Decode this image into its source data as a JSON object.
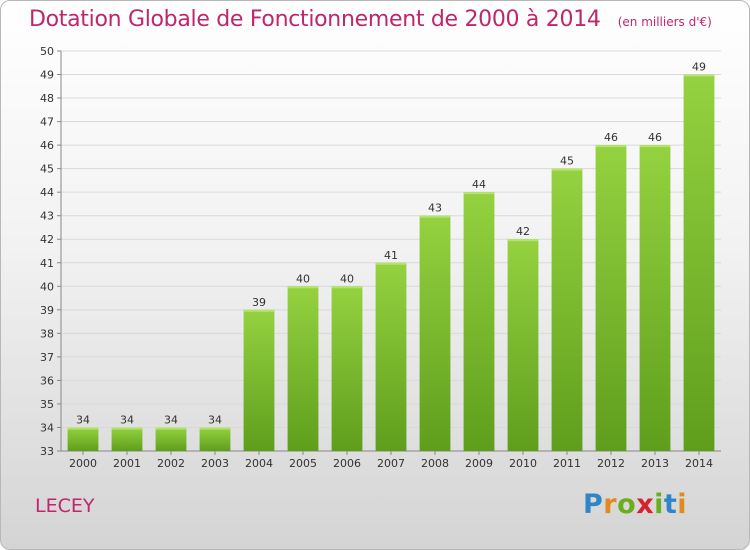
{
  "chart_data": {
    "type": "bar",
    "title": "Dotation Globale de Fonctionnement de 2000 à 2014",
    "subtitle": "(en milliers d'€)",
    "categories": [
      "2000",
      "2001",
      "2002",
      "2003",
      "2004",
      "2005",
      "2006",
      "2007",
      "2008",
      "2009",
      "2010",
      "2011",
      "2012",
      "2013",
      "2014"
    ],
    "values": [
      34,
      34,
      34,
      34,
      39,
      40,
      40,
      41,
      43,
      44,
      42,
      45,
      46,
      46,
      49
    ],
    "ylim": [
      33,
      50
    ],
    "yticks": [
      33,
      34,
      35,
      36,
      37,
      38,
      39,
      40,
      41,
      42,
      43,
      44,
      45,
      46,
      47,
      48,
      49,
      50
    ],
    "grid": true,
    "bar_color": "#7cbf30",
    "label_text": "LECEY"
  },
  "brand": {
    "letters": [
      "P",
      "r",
      "o",
      "x",
      "i",
      "t",
      "i"
    ]
  }
}
